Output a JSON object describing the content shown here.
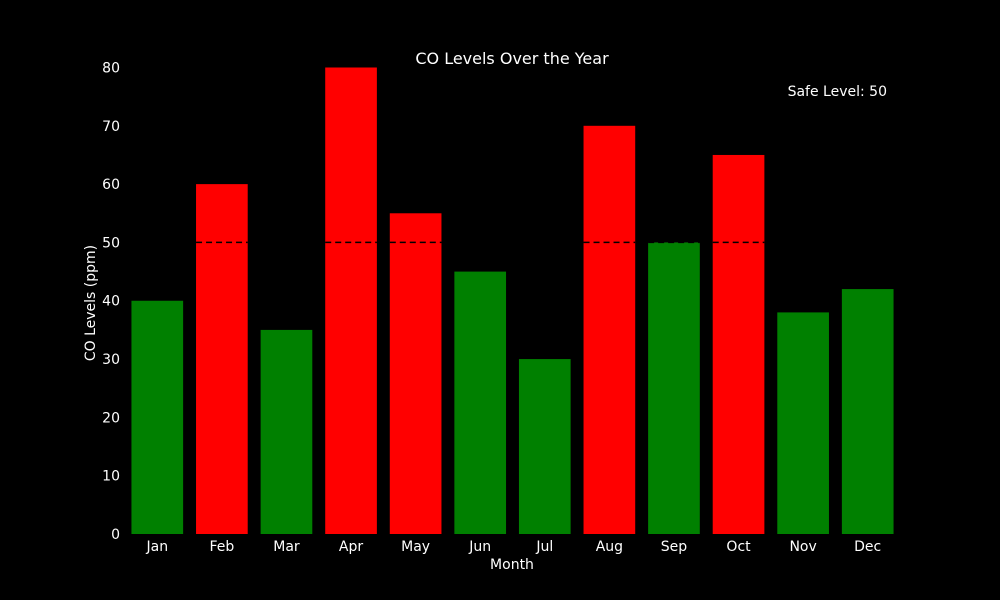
{
  "chart_data": {
    "type": "bar",
    "title": "CO Levels Over the Year",
    "xlabel": "Month",
    "ylabel": "CO Levels (ppm)",
    "categories": [
      "Jan",
      "Feb",
      "Mar",
      "Apr",
      "May",
      "Jun",
      "Jul",
      "Aug",
      "Sep",
      "Oct",
      "Nov",
      "Dec"
    ],
    "values": [
      40,
      60,
      35,
      80,
      55,
      45,
      30,
      70,
      50,
      65,
      38,
      42
    ],
    "ylim": [
      0,
      83
    ],
    "yticks": [
      0,
      10,
      20,
      30,
      40,
      50,
      60,
      70,
      80
    ],
    "threshold": 50,
    "annotation": "Safe Level: 50",
    "colors": {
      "above_threshold": "#ff0000",
      "at_or_below_threshold": "#008000",
      "threshold_line": "#000000",
      "background": "#000000",
      "text": "#ffffff"
    },
    "grid": false,
    "legend": "none"
  }
}
